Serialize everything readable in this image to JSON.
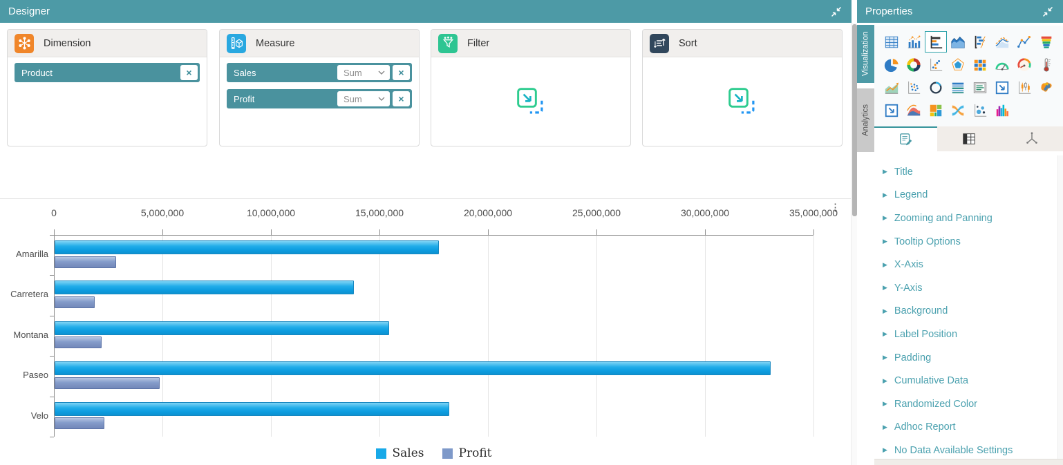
{
  "designer": {
    "title": "Designer",
    "menu_icon": "⋮",
    "cards": {
      "dimension": {
        "title": "Dimension",
        "accent": "#f0862a",
        "chip": {
          "label": "Product"
        }
      },
      "measure": {
        "title": "Measure",
        "accent": "#29a8e0",
        "rows": [
          {
            "label": "Sales",
            "aggregate": "Sum"
          },
          {
            "label": "Profit",
            "aggregate": "Sum"
          }
        ]
      },
      "filter": {
        "title": "Filter",
        "accent": "#2ec592"
      },
      "sort": {
        "title": "Sort",
        "accent": "#31475c"
      }
    }
  },
  "chart_data": {
    "type": "bar",
    "orientation": "horizontal",
    "categories": [
      "Amarilla",
      "Carretera",
      "Montana",
      "Paseo",
      "Velo"
    ],
    "series": [
      {
        "name": "Sales",
        "color": "#18a9e8",
        "values": [
          17700000,
          13800000,
          15400000,
          33000000,
          18200000
        ]
      },
      {
        "name": "Profit",
        "color": "#7e99c9",
        "values": [
          2850000,
          1850000,
          2150000,
          4850000,
          2300000
        ]
      }
    ],
    "xlim": [
      0,
      35000000
    ],
    "x_tick_labels": [
      "0",
      "5,000,000",
      "10,000,000",
      "15,000,000",
      "20,000,000",
      "25,000,000",
      "30,000,000",
      "35,000,000"
    ],
    "grid": true,
    "legend_position": "bottom"
  },
  "properties": {
    "title": "Properties",
    "side_tabs": [
      {
        "label": "Visualization",
        "active": true
      },
      {
        "label": "Analytics",
        "active": false
      }
    ],
    "widget_icons": [
      {
        "name": "grid-widget-icon",
        "icon": "grid"
      },
      {
        "name": "column-chart-icon",
        "icon": "column"
      },
      {
        "name": "bar-chart-icon",
        "icon": "bar",
        "selected": true
      },
      {
        "name": "area-chart-icon",
        "icon": "area"
      },
      {
        "name": "waterfall-chart-icon",
        "icon": "waterfall"
      },
      {
        "name": "spline-area-chart-icon",
        "icon": "splinearea"
      },
      {
        "name": "line-chart-icon",
        "icon": "line"
      },
      {
        "name": "funnel-chart-icon",
        "icon": "funnel"
      },
      {
        "name": "pie-chart-icon",
        "icon": "pie"
      },
      {
        "name": "doughnut-chart-icon",
        "icon": "doughnut"
      },
      {
        "name": "scatter-chart-icon",
        "icon": "scatter"
      },
      {
        "name": "polar-chart-icon",
        "icon": "polar"
      },
      {
        "name": "heatmap-widget-icon",
        "icon": "heatmap"
      },
      {
        "name": "radial-gauge-icon",
        "icon": "radialgauge"
      },
      {
        "name": "circular-gauge-icon",
        "icon": "circulargauge"
      },
      {
        "name": "thermometer-gauge-icon",
        "icon": "thermometer"
      },
      {
        "name": "combo-chart-icon",
        "icon": "combo"
      },
      {
        "name": "proximity-chart-icon",
        "icon": "proximity"
      },
      {
        "name": "ring-chart-icon",
        "icon": "ring"
      },
      {
        "name": "pivot-grid-icon",
        "icon": "pivot"
      },
      {
        "name": "card-widget-icon",
        "icon": "card"
      },
      {
        "name": "embed-widget-icon",
        "icon": "frame"
      },
      {
        "name": "candlestick-chart-icon",
        "icon": "candle"
      },
      {
        "name": "map-widget-icon",
        "icon": "map"
      },
      {
        "name": "image-widget-icon",
        "icon": "frame"
      },
      {
        "name": "range-area-chart-icon",
        "icon": "rangearea"
      },
      {
        "name": "treemap-widget-icon",
        "icon": "treemap"
      },
      {
        "name": "sankey-chart-icon",
        "icon": "sankey"
      },
      {
        "name": "bubble-chart-icon",
        "icon": "bubble"
      },
      {
        "name": "histogram-chart-icon",
        "icon": "histogram"
      }
    ],
    "sub_tabs": [
      {
        "name": "properties-subtab",
        "icon": "notes",
        "active": true
      },
      {
        "name": "data-grid-subtab",
        "icon": "dgrid",
        "active": false
      },
      {
        "name": "axes-subtab",
        "icon": "axes",
        "active": false
      }
    ],
    "sections": [
      "Title",
      "Legend",
      "Zooming and Panning",
      "Tooltip Options",
      "X-Axis",
      "Y-Axis",
      "Background",
      "Label Position",
      "Padding",
      "Cumulative Data",
      "Randomized Color",
      "Adhoc Report",
      "No Data Available Settings"
    ]
  }
}
